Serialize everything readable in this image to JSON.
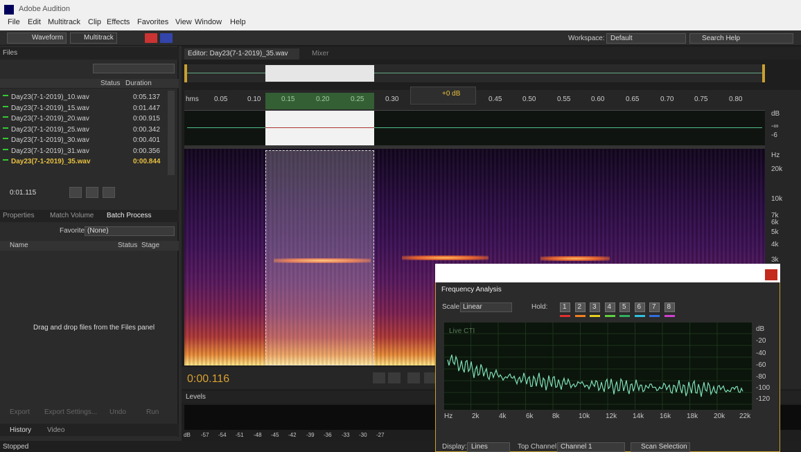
{
  "app": {
    "title": "Adobe Audition",
    "menu": [
      "File",
      "Edit",
      "Multitrack",
      "Clip",
      "Effects",
      "Favorites",
      "View",
      "Window",
      "Help"
    ]
  },
  "toolbar": {
    "waveform": "Waveform",
    "multitrack": "Multitrack",
    "workspace_label": "Workspace:",
    "workspace": "Default",
    "search": "Search Help"
  },
  "files": {
    "tab": "Files",
    "columns": [
      "Status",
      "Duration"
    ],
    "rows": [
      {
        "name": "Day23(7-1-2019)_10.wav",
        "duration": "0:05.137"
      },
      {
        "name": "Day23(7-1-2019)_15.wav",
        "duration": "0:01.447"
      },
      {
        "name": "Day23(7-1-2019)_20.wav",
        "duration": "0:00.915"
      },
      {
        "name": "Day23(7-1-2019)_25.wav",
        "duration": "0:00.342"
      },
      {
        "name": "Day23(7-1-2019)_30.wav",
        "duration": "0:00.401"
      },
      {
        "name": "Day23(7-1-2019)_31.wav",
        "duration": "0:00.356"
      },
      {
        "name": "Day23(7-1-2019)_35.wav",
        "duration": "0:00.844"
      }
    ],
    "time": "0:01.115"
  },
  "batch": {
    "tabs": [
      "Properties",
      "Match Volume",
      "Batch Process"
    ],
    "favorite_label": "Favorite:",
    "favorite": "(None)",
    "columns": [
      "Name",
      "Status",
      "Stage"
    ],
    "hint": "Drag and drop files from the Files panel",
    "buttons": [
      "Export",
      "Export Settings...",
      "Undo",
      "Run"
    ]
  },
  "history": {
    "tabs": [
      "History",
      "Video"
    ]
  },
  "status": "Stopped",
  "editor": {
    "tab": "Editor: Day23(7-1-2019)_35.wav",
    "mixer": "Mixer",
    "ruler": [
      "hms",
      "0.05",
      "0.10",
      "0.15",
      "0.20",
      "0.25",
      "0.30",
      "0.45",
      "0.50",
      "0.55",
      "0.60",
      "0.65",
      "0.70",
      "0.75",
      "0.80"
    ],
    "gain": "+0 dB",
    "db_scale": [
      "dB",
      "-∞",
      "-6"
    ],
    "hz_scale": [
      "Hz",
      "20k",
      "10k",
      "7k",
      "6k",
      "5k",
      "4k",
      "3k"
    ],
    "time": "0:00.116"
  },
  "levels": {
    "tab": "Levels",
    "scale": [
      "dB",
      "-57",
      "-54",
      "-51",
      "-48",
      "-45",
      "-42",
      "-39",
      "-36",
      "-33",
      "-30",
      "-27"
    ]
  },
  "frequency_analysis": {
    "title": "Frequency Analysis",
    "scale_label": "Scale:",
    "scale": "Linear",
    "hold_label": "Hold:",
    "holds": [
      "1",
      "2",
      "3",
      "4",
      "5",
      "6",
      "7",
      "8"
    ],
    "live": "Live CTI",
    "db_labels": [
      "dB",
      "-20",
      "-40",
      "-60",
      "-80",
      "-100",
      "-120"
    ],
    "hz_labels": [
      "Hz",
      "2k",
      "4k",
      "6k",
      "8k",
      "10k",
      "12k",
      "14k",
      "16k",
      "18k",
      "20k",
      "22k"
    ],
    "display_label": "Display:",
    "display": "Lines",
    "channel_label": "Top Channel:",
    "channel": "Channel 1",
    "scan": "Scan Selection"
  }
}
